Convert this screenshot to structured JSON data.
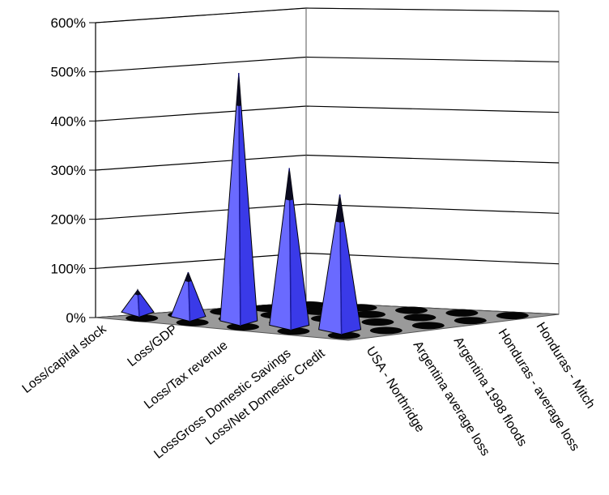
{
  "chart_data": {
    "type": "bar",
    "bar_shape": "pyramid",
    "view": "3d-perspective",
    "y_axis": {
      "tick_labels": [
        "0%",
        "100%",
        "200%",
        "300%",
        "400%",
        "500%",
        "600%"
      ],
      "min": 0,
      "max": 600,
      "unit": "%",
      "grid": true
    },
    "depth_categories": [
      "Loss/capital stock",
      "Loss/GDP",
      "Loss/Tax revenue",
      "LossGross Domestic Savings",
      "Loss/Net Domestic Credit"
    ],
    "x_categories": [
      "USA - Northridge",
      "Argentina average loss",
      "Argentina 1998 floods",
      "Honduras - average loss",
      "Honduras - Mitch"
    ],
    "visible_peaks": [
      {
        "x": "USA - Northridge",
        "depth": "Loss/Net Domestic Credit",
        "value": 50
      },
      {
        "x": "Argentina average loss",
        "depth": "Loss/Net Domestic Credit",
        "value": 100
      },
      {
        "x": "Argentina 1998 floods",
        "depth": "Loss/Net Domestic Credit",
        "value": 560
      },
      {
        "x": "Honduras - average loss",
        "depth": "Loss/Net Domestic Credit",
        "value": 355
      },
      {
        "x": "Honduras - Mitch",
        "depth": "Loss/Net Domestic Credit",
        "value": 305
      }
    ],
    "colors": {
      "pyramid_light": "#6a6aff",
      "pyramid_mid": "#3a3ae8",
      "pyramid_dark": "#1a1a9c",
      "pyramid_tip": "#0a0a20",
      "floor": "#9a9a9a",
      "floor_spot": "#050505",
      "gridline": "#000000"
    }
  }
}
